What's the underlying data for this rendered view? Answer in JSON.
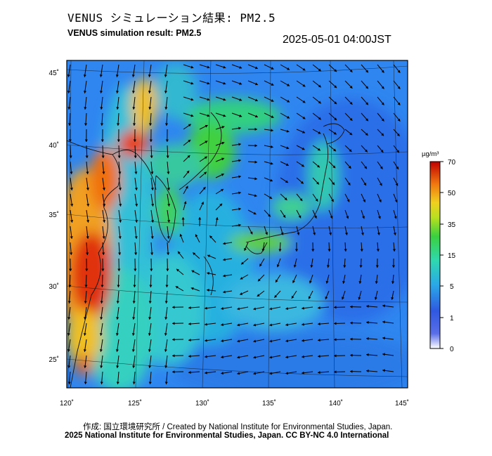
{
  "header": {
    "title_ja": "VENUS シミュレーション結果: PM2.5",
    "title_en": "VENUS simulation result: PM2.5",
    "timestamp": "2025-05-01 04:00JST"
  },
  "map": {
    "lon_labels": [
      "120˚",
      "125˚",
      "130˚",
      "135˚",
      "140˚",
      "145˚"
    ],
    "lat_labels": [
      "25˚",
      "30˚",
      "35˚",
      "40˚",
      "45˚"
    ],
    "lon_range": [
      120,
      145
    ],
    "lat_range": [
      23,
      46
    ]
  },
  "colorbar": {
    "unit": "µg/m³",
    "ticks": [
      "0",
      "1",
      "5",
      "15",
      "35",
      "50",
      "70"
    ],
    "colors": [
      "#ffffff",
      "#3050e0",
      "#2aa8e8",
      "#30d8b0",
      "#3ad040",
      "#f0d020",
      "#f07810",
      "#e01010",
      "#b00000"
    ]
  },
  "footer": {
    "credit": "作成: 国立環境研究所 / Created by National Institute for Environmental Studies, Japan.",
    "license": "2025 National Institute for Environmental Studies, Japan. CC BY-NC 4.0 International"
  }
}
